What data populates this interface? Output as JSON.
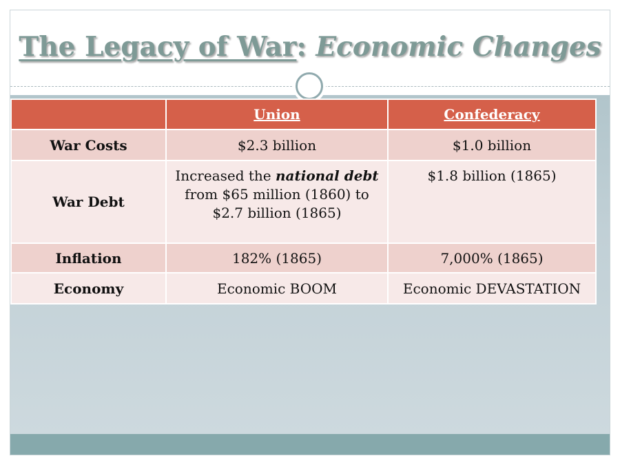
{
  "slide": {
    "title_part1": "The Legacy of War",
    "title_colon": ":",
    "title_part2": "Economic Changes"
  },
  "table": {
    "headers": [
      "",
      "Union",
      "Confederacy"
    ],
    "rows": [
      {
        "label": "War Costs",
        "union": "$2.3 billion",
        "confederacy": "$1.0 billion"
      },
      {
        "label": "War Debt",
        "union_pre": "Increased the ",
        "union_em": "national debt",
        "union_post": "from $65 million (1860) to $2.7 billion (1865)",
        "confederacy": "$1.8 billion (1865)"
      },
      {
        "label": "Inflation",
        "union": "182% (1865)",
        "confederacy": "7,000% (1865)"
      },
      {
        "label": "Economy",
        "union": "Economic BOOM",
        "confederacy": "Economic DEVASTATION"
      }
    ]
  },
  "colors": {
    "title": "#7e9a96",
    "header_bg": "#d5604a",
    "row_dark": "#eed1cd",
    "row_light": "#f7e9e8",
    "body_bg": "#b1c5cb",
    "footer_bar": "#86a9ac"
  },
  "icons": {
    "divider_ornament": "circle-ornament-icon"
  }
}
